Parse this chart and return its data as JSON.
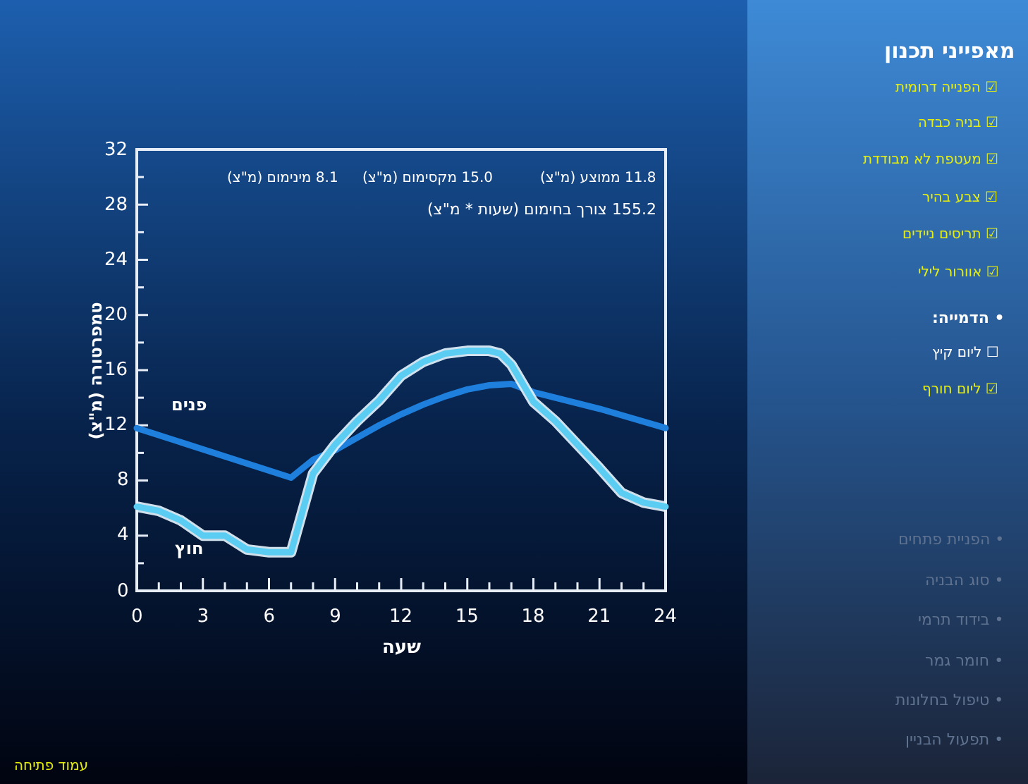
{
  "chart_data": {
    "type": "line",
    "xlabel": "שעה",
    "ylabel": "טמפרטורה (מ\"צ)",
    "xlim": [
      0,
      24
    ],
    "ylim": [
      0,
      32
    ],
    "xticks": [
      0,
      {
        "value": 1,
        "label": null
      },
      {
        "value": 2,
        "label": null
      },
      3,
      {
        "value": 4,
        "label": null
      },
      {
        "value": 5,
        "label": null
      },
      6,
      {
        "value": 7,
        "label": null
      },
      {
        "value": 8,
        "label": null
      },
      9,
      {
        "value": 10,
        "label": null
      },
      {
        "value": 11,
        "label": null
      },
      12,
      {
        "value": 13,
        "label": null
      },
      {
        "value": 14,
        "label": null
      },
      15,
      {
        "value": 16,
        "label": null
      },
      {
        "value": 17,
        "label": null
      },
      18,
      {
        "value": 19,
        "label": null
      },
      {
        "value": 20,
        "label": null
      },
      21,
      {
        "value": 22,
        "label": null
      },
      {
        "value": 23,
        "label": null
      },
      24
    ],
    "yticks": [
      0,
      {
        "value": 2,
        "label": null
      },
      4,
      {
        "value": 6,
        "label": null
      },
      8,
      {
        "value": 10,
        "label": null
      },
      12,
      {
        "value": 14,
        "label": null
      },
      16,
      {
        "value": 18,
        "label": null
      },
      20,
      {
        "value": 22,
        "label": null
      },
      24,
      {
        "value": 26,
        "label": null
      },
      28,
      {
        "value": 30,
        "label": null
      },
      32
    ],
    "series": [
      {
        "name": "פנים",
        "color": "#1f7fdc",
        "x": [
          0,
          7,
          8,
          9,
          10,
          11,
          12,
          13,
          14,
          15,
          16,
          17,
          18,
          19,
          21,
          24
        ],
        "values": [
          11.8,
          8.2,
          9.5,
          10.2,
          11.1,
          12.0,
          12.8,
          13.5,
          14.1,
          14.6,
          14.9,
          15.0,
          14.4,
          14.0,
          13.2,
          11.8
        ]
      },
      {
        "name": "חוץ",
        "color": "#5ccdf2",
        "x": [
          0,
          1,
          2,
          3,
          4,
          5,
          6,
          7,
          8,
          9,
          10,
          11,
          12,
          13,
          14,
          15,
          16,
          16.5,
          17,
          18,
          19,
          20,
          21,
          22,
          23,
          24
        ],
        "values": [
          6.1,
          5.8,
          5.1,
          4.0,
          4.0,
          3.0,
          2.8,
          2.8,
          8.5,
          10.6,
          12.3,
          13.8,
          15.6,
          16.6,
          17.2,
          17.4,
          17.4,
          17.2,
          16.4,
          13.7,
          12.3,
          10.6,
          8.9,
          7.1,
          6.4,
          6.1
        ]
      }
    ],
    "annotations": [
      "11.8 ממוצע (מ\"צ)",
      "15.0 מקסימום (מ\"צ)",
      "8.1 מינימום (מ\"צ)",
      "155.2 צורך בחימום (שעות * מ\"צ)",
      "מאפייני תכנון",
      "☑ הפנייה דרומית",
      "☑ בניה כבדה",
      "☑ מעטפת לא מבודדת",
      "☑ צבע בהיר",
      "☑ תריסים ניידים",
      "☑ אוורור לילי",
      "• הדמייה:",
      "☐ ליום קיץ",
      "☑ ליום חורף",
      "• הפניית פתחים",
      "• סוג הבניה",
      "• בידוד תרמי",
      "• חומר גמר",
      "• טיפול בחלונות",
      "• תפעול הבניין",
      "עמוד פתיחה"
    ]
  }
}
